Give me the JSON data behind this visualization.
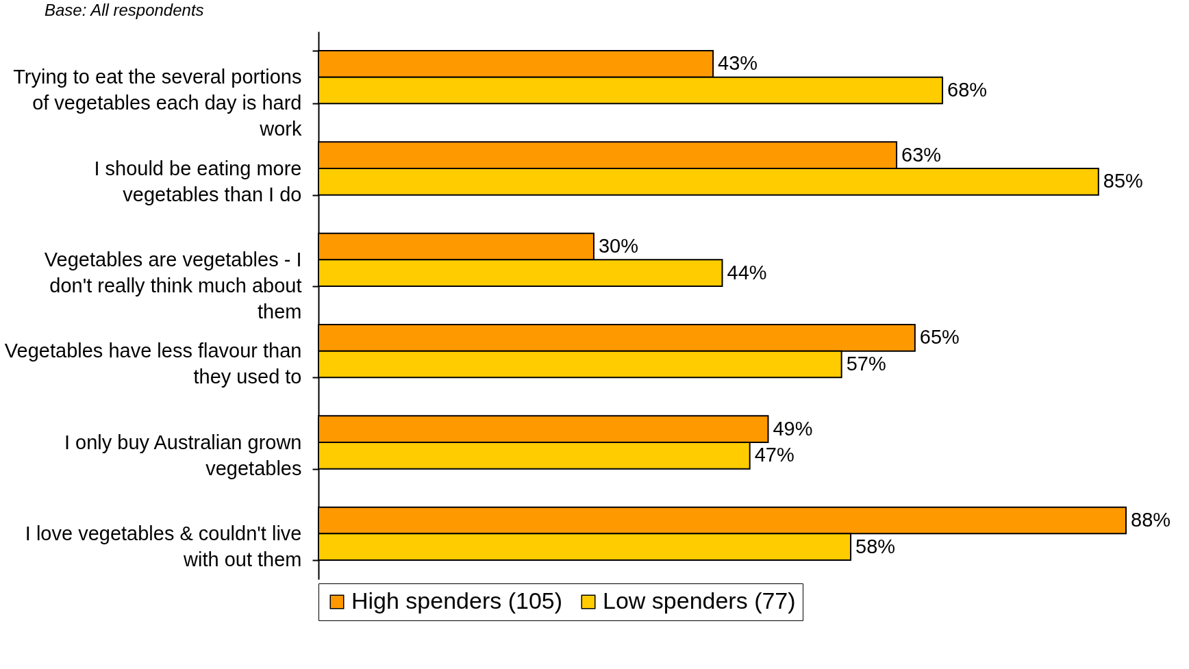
{
  "chart_data": {
    "type": "bar",
    "orientation": "horizontal",
    "annotations": [
      "Base: All respondents"
    ],
    "categories": [
      "Trying to eat the several portions of vegetables each day is hard work",
      "I should be eating more vegetables than I do",
      "Vegetables are vegetables - I don't really think much about them",
      "Vegetables have less flavour than they used to",
      "I only buy Australian grown vegetables",
      "I love vegetables & couldn't live with out them"
    ],
    "series": [
      {
        "name": "High spenders (105)",
        "color": "#ff9900",
        "values": [
          43,
          63,
          30,
          65,
          49,
          88
        ],
        "value_labels": [
          "43%",
          "63%",
          "30%",
          "65%",
          "49%",
          "88%"
        ]
      },
      {
        "name": "Low spenders (77)",
        "color": "#ffcc00",
        "values": [
          68,
          85,
          44,
          57,
          47,
          58
        ],
        "value_labels": [
          "68%",
          "85%",
          "44%",
          "57%",
          "47%",
          "58%"
        ]
      }
    ],
    "legend": "bottom",
    "grid": false
  }
}
